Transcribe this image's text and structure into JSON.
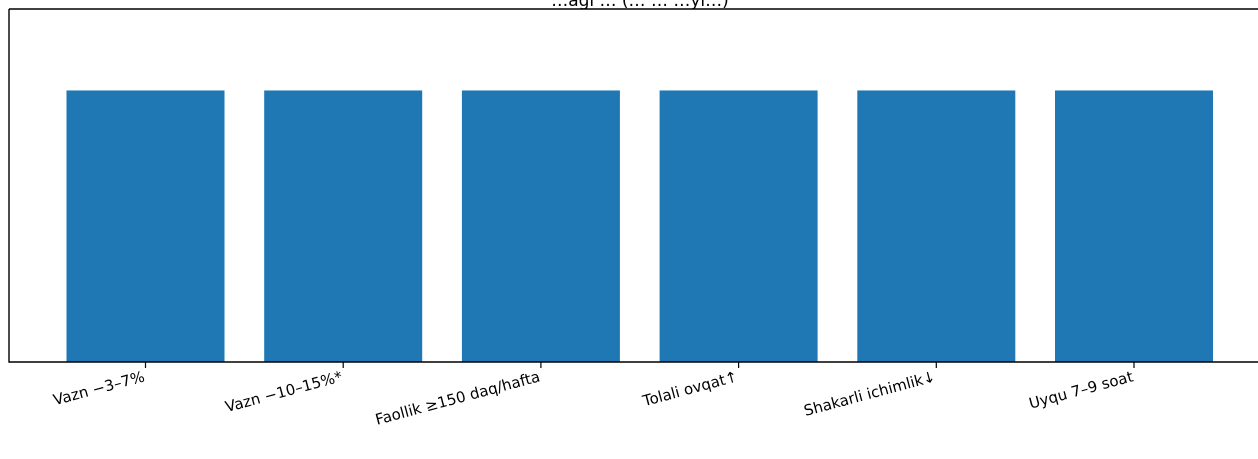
{
  "chart_data": {
    "type": "bar",
    "title": "…agi … (… … …yi…)",
    "categories": [
      "Vazn −3–7%",
      "Vazn −10–15%*",
      "Faollik ≥150 daq/hafta",
      "Tolali ovqat↑",
      "Shakarli ichimlik↓",
      "Uyqu 7–9 soat"
    ],
    "values": [
      1,
      1,
      1,
      1,
      1,
      1
    ],
    "ylim": [
      0,
      1.3
    ],
    "xlabel": "",
    "ylabel": "",
    "grid": false,
    "colors": {
      "bar": "#1f77b4",
      "axis": "#000000"
    }
  }
}
